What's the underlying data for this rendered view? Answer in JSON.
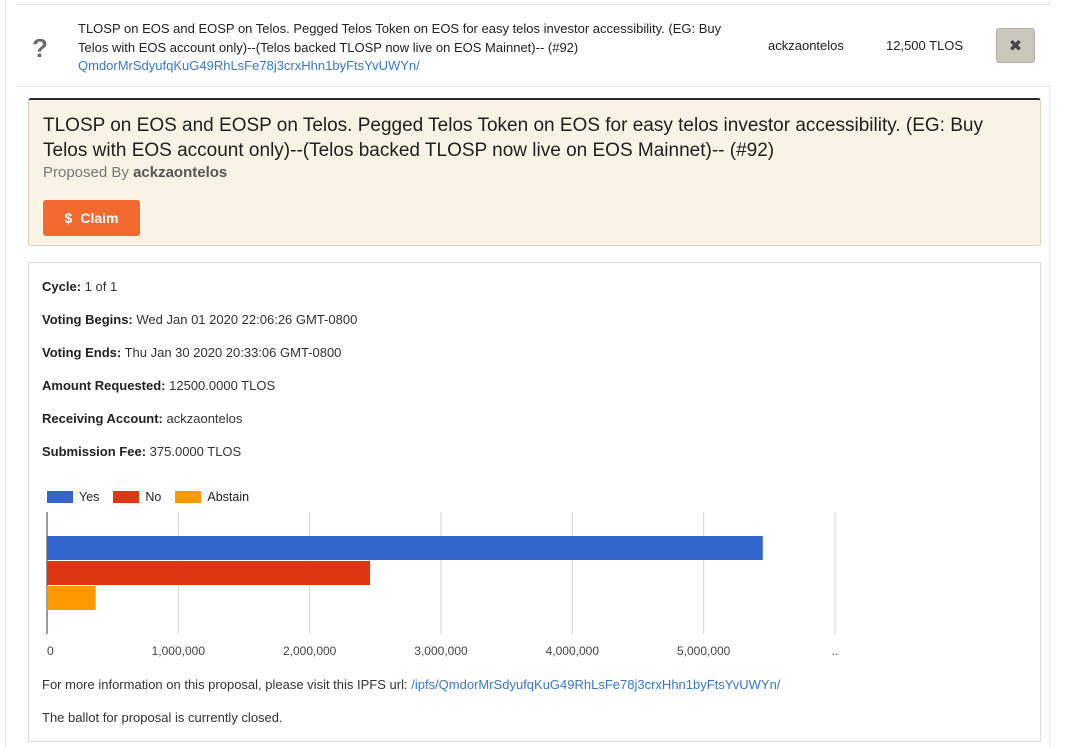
{
  "list_row": {
    "title": "TLOSP on EOS and EOSP on Telos. Pegged Telos Token on EOS for easy telos investor accessibility. (EG: Buy Telos with EOS account only)--(Telos backed TLOSP now live on EOS Mainnet)-- (#92)",
    "ipfs_hash": "QmdorMrSdyufqKuG49RhLsFe78j3crxHhn1byFtsYvUWYn/",
    "account": "ackzaontelos",
    "amount": "12,500 TLOS",
    "status_icon": "question-icon",
    "close_icon": "close-icon"
  },
  "header": {
    "title": "TLOSP on EOS and EOSP on Telos. Pegged Telos Token on EOS for easy telos investor accessibility. (EG: Buy Telos with EOS account only)--(Telos backed TLOSP now live on EOS Mainnet)-- (#92)",
    "proposed_by_label": "Proposed By",
    "proposer": "ackzaontelos",
    "claim_icon": "$",
    "claim_label": "Claim",
    "claim_color": "#f26a2e"
  },
  "details": {
    "cycle_label": "Cycle:",
    "cycle_value": "1 of 1",
    "voting_begins_label": "Voting Begins:",
    "voting_begins_value": "Wed Jan 01 2020 22:06:26 GMT-0800",
    "voting_ends_label": "Voting Ends:",
    "voting_ends_value": "Thu Jan 30 2020 20:33:06 GMT-0800",
    "amount_requested_label": "Amount Requested:",
    "amount_requested_value": "12500.0000 TLOS",
    "receiving_account_label": "Receiving Account:",
    "receiving_account_value": "ackzaontelos",
    "submission_fee_label": "Submission Fee:",
    "submission_fee_value": "375.0000 TLOS"
  },
  "chart_data": {
    "type": "bar",
    "orientation": "horizontal",
    "series": [
      {
        "name": "Yes",
        "value": 5450000,
        "color": "#3366cc"
      },
      {
        "name": "No",
        "value": 2460000,
        "color": "#dc3912"
      },
      {
        "name": "Abstain",
        "value": 370000,
        "color": "#ff9900"
      }
    ],
    "xlim": [
      0,
      6000000
    ],
    "ticks": [
      {
        "value": 0,
        "label": "0"
      },
      {
        "value": 1000000,
        "label": "1,000,000"
      },
      {
        "value": 2000000,
        "label": "2,000,000"
      },
      {
        "value": 3000000,
        "label": "3,000,000"
      },
      {
        "value": 4000000,
        "label": "4,000,000"
      },
      {
        "value": 5000000,
        "label": "5,000,000"
      },
      {
        "value": 6000000,
        "label": ".."
      }
    ],
    "grid": true,
    "legend_position": "top-left"
  },
  "footer": {
    "ipfs_prefix": "For more information on this proposal, please visit this IPFS url:",
    "ipfs_link": "/ipfs/QmdorMrSdyufqKuG49RhLsFe78j3crxHhn1byFtsYvUWYn/",
    "ballot_status": "The ballot for proposal is currently closed."
  }
}
